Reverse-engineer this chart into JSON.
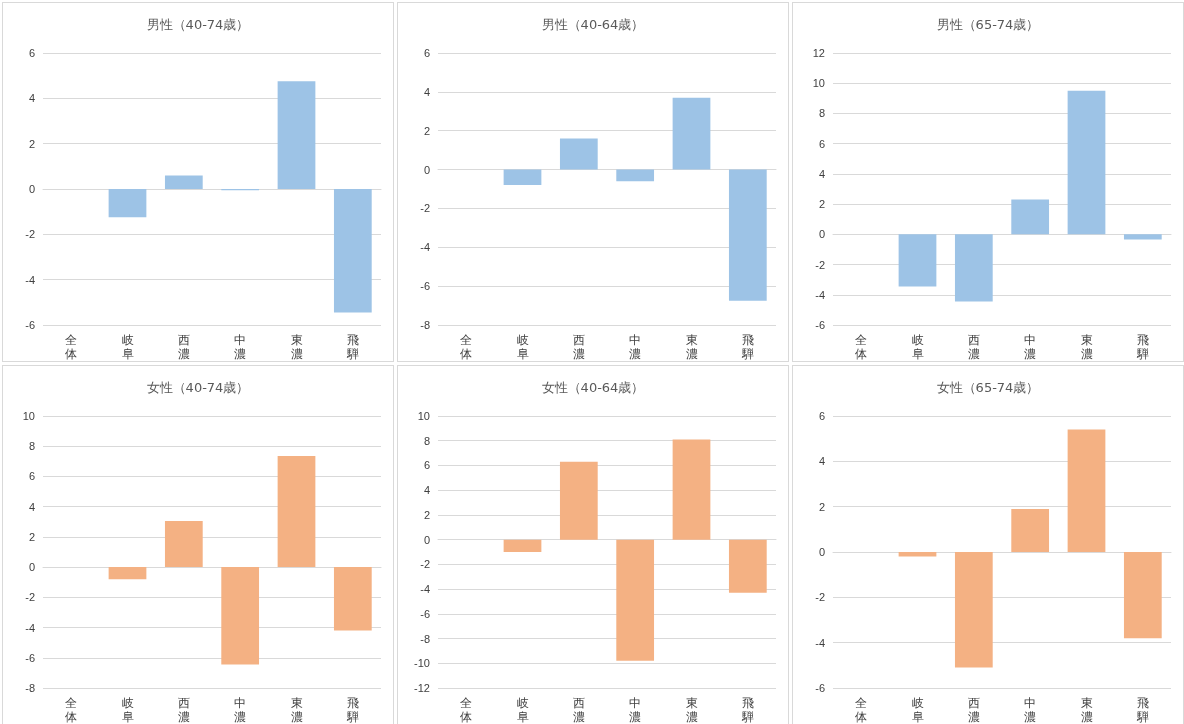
{
  "chart_data": [
    {
      "type": "bar",
      "title": "男性（40-74歳）",
      "categories": [
        "全体",
        "岐阜",
        "西濃",
        "中濃",
        "東濃",
        "飛騨"
      ],
      "values": [
        0,
        -1.25,
        0.6,
        -0.05,
        4.75,
        -5.45
      ],
      "color": "#9dc3e6",
      "ylim": [
        -6,
        6
      ],
      "yticks": [
        -6,
        -4,
        -2,
        0,
        2,
        4,
        6
      ],
      "grid": "y"
    },
    {
      "type": "bar",
      "title": "男性（40-64歳）",
      "categories": [
        "全体",
        "岐阜",
        "西濃",
        "中濃",
        "東濃",
        "飛騨"
      ],
      "values": [
        0,
        -0.8,
        1.6,
        -0.6,
        3.7,
        -6.75
      ],
      "color": "#9dc3e6",
      "ylim": [
        -8,
        6
      ],
      "yticks": [
        -8,
        -6,
        -4,
        -2,
        0,
        2,
        4,
        6
      ],
      "grid": "y"
    },
    {
      "type": "bar",
      "title": "男性（65-74歳）",
      "categories": [
        "全体",
        "岐阜",
        "西濃",
        "中濃",
        "東濃",
        "飛騨"
      ],
      "values": [
        0,
        -3.45,
        -4.45,
        2.3,
        9.5,
        -0.35
      ],
      "color": "#9dc3e6",
      "ylim": [
        -6,
        12
      ],
      "yticks": [
        -6,
        -4,
        -2,
        0,
        2,
        4,
        6,
        8,
        10,
        12
      ],
      "grid": "y"
    },
    {
      "type": "bar",
      "title": "女性（40-74歳）",
      "categories": [
        "全体",
        "岐阜",
        "西濃",
        "中濃",
        "東濃",
        "飛騨"
      ],
      "values": [
        0,
        -0.8,
        3.05,
        -6.45,
        7.35,
        -4.2
      ],
      "color": "#f4b183",
      "ylim": [
        -8,
        10
      ],
      "yticks": [
        -8,
        -6,
        -4,
        -2,
        0,
        2,
        4,
        6,
        8,
        10
      ],
      "grid": "y"
    },
    {
      "type": "bar",
      "title": "女性（40-64歳）",
      "categories": [
        "全体",
        "岐阜",
        "西濃",
        "中濃",
        "東濃",
        "飛騨"
      ],
      "values": [
        0,
        -1.0,
        6.3,
        -9.8,
        8.1,
        -4.3
      ],
      "color": "#f4b183",
      "ylim": [
        -12,
        10
      ],
      "yticks": [
        -12,
        -10,
        -8,
        -6,
        -4,
        -2,
        0,
        2,
        4,
        6,
        8,
        10
      ],
      "grid": "y"
    },
    {
      "type": "bar",
      "title": "女性（65-74歳）",
      "categories": [
        "全体",
        "岐阜",
        "西濃",
        "中濃",
        "東濃",
        "飛騨"
      ],
      "values": [
        0,
        -0.2,
        -5.1,
        1.9,
        5.4,
        -3.8
      ],
      "color": "#f4b183",
      "ylim": [
        -6,
        6
      ],
      "yticks": [
        -6,
        -4,
        -2,
        0,
        2,
        4,
        6
      ],
      "grid": "y"
    }
  ]
}
